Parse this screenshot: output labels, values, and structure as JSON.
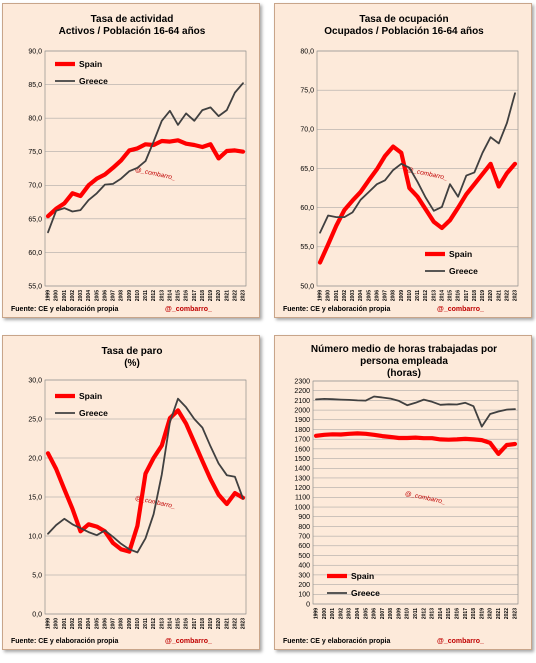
{
  "colors": {
    "spain": "#ff0000",
    "greece": "#404040",
    "grid": "#9b9b9b",
    "panel": "#fdeada"
  },
  "footer": {
    "source": "Fuente:  CE y elaboración propia",
    "handle": "@_combarro_"
  },
  "watermark": "@_combarro_",
  "chart_data": [
    {
      "type": "line",
      "title": "Tasa de actividad",
      "subtitle": "Activos / Población 16-64 años",
      "x": [
        "1999",
        "2000",
        "2001",
        "2002",
        "2003",
        "2004",
        "2005",
        "2006",
        "2007",
        "2008",
        "2009",
        "2010",
        "2011",
        "2012",
        "2013",
        "2014",
        "2015",
        "2016",
        "2017",
        "2018",
        "2019",
        "2020",
        "2021",
        "2022",
        "2023"
      ],
      "ylim": [
        55,
        90
      ],
      "yticks": [
        55,
        60,
        65,
        70,
        75,
        80,
        85,
        90
      ],
      "ydecimals": 1,
      "legend": "top-left",
      "series": [
        {
          "name": "Spain",
          "values": [
            65.4,
            66.5,
            67.3,
            68.8,
            68.4,
            70.0,
            71.0,
            71.6,
            72.6,
            73.7,
            75.2,
            75.5,
            76.1,
            76.0,
            76.6,
            76.5,
            76.7,
            76.2,
            76.0,
            75.7,
            76.1,
            74.0,
            75.1,
            75.2,
            75.0
          ]
        },
        {
          "name": "Greece",
          "values": [
            63.0,
            66.2,
            66.6,
            66.1,
            66.3,
            67.8,
            68.8,
            70.1,
            70.2,
            71.0,
            72.1,
            72.6,
            73.6,
            76.5,
            79.6,
            81.1,
            79.0,
            80.7,
            79.6,
            81.2,
            81.6,
            80.3,
            81.2,
            83.8,
            85.2
          ]
        }
      ]
    },
    {
      "type": "line",
      "title": "Tasa de ocupación",
      "subtitle": "Ocupados / Población 16-64 años",
      "x": [
        "1999",
        "2000",
        "2001",
        "2002",
        "2003",
        "2004",
        "2005",
        "2006",
        "2007",
        "2008",
        "2009",
        "2010",
        "2011",
        "2012",
        "2013",
        "2014",
        "2015",
        "2016",
        "2017",
        "2018",
        "2019",
        "2020",
        "2021",
        "2022",
        "2023"
      ],
      "ylim": [
        50,
        80
      ],
      "yticks": [
        50,
        55,
        60,
        65,
        70,
        75,
        80
      ],
      "ydecimals": 1,
      "legend": "bottom-right",
      "series": [
        {
          "name": "Spain",
          "values": [
            53.0,
            55.3,
            57.7,
            59.7,
            60.9,
            62.0,
            63.5,
            64.9,
            66.6,
            67.8,
            67.0,
            62.5,
            61.4,
            59.8,
            58.2,
            57.4,
            58.4,
            60.0,
            61.7,
            63.0,
            64.3,
            65.6,
            62.7,
            64.4,
            65.6
          ]
        },
        {
          "name": "Greece",
          "values": [
            56.8,
            59.0,
            58.8,
            58.8,
            59.4,
            61.0,
            62.0,
            63.0,
            63.5,
            64.8,
            65.6,
            65.1,
            63.3,
            61.3,
            59.6,
            60.1,
            63.0,
            61.4,
            64.1,
            64.5,
            67.0,
            69.0,
            68.2,
            70.8,
            74.6
          ]
        }
      ]
    },
    {
      "type": "line",
      "title": "Tasa de paro",
      "subtitle": "(%)",
      "x": [
        "1999",
        "2000",
        "2001",
        "2002",
        "2003",
        "2004",
        "2005",
        "2006",
        "2007",
        "2008",
        "2009",
        "2010",
        "2011",
        "2012",
        "2013",
        "2014",
        "2015",
        "2016",
        "2017",
        "2018",
        "2019",
        "2020",
        "2021",
        "2022",
        "2023"
      ],
      "ylim": [
        0,
        30
      ],
      "yticks": [
        0,
        5,
        10,
        15,
        20,
        25,
        30
      ],
      "ydecimals": 1,
      "legend": "top-left",
      "series": [
        {
          "name": "Spain",
          "values": [
            20.6,
            18.6,
            16.0,
            13.5,
            10.6,
            11.5,
            11.2,
            10.6,
            9.1,
            8.3,
            8.0,
            11.3,
            18.0,
            20.0,
            21.6,
            25.1,
            26.1,
            24.4,
            22.0,
            19.6,
            17.3,
            15.3,
            14.1,
            15.5,
            14.9
          ]
        },
        {
          "name": "Greece",
          "values": [
            10.3,
            11.4,
            12.2,
            11.5,
            11.0,
            10.5,
            10.1,
            10.7,
            9.9,
            9.0,
            8.3,
            7.9,
            9.7,
            12.8,
            17.9,
            24.6,
            27.6,
            26.5,
            25.0,
            23.9,
            21.5,
            19.3,
            17.8,
            17.6,
            14.8
          ]
        }
      ]
    },
    {
      "type": "line",
      "title": "Número medio de horas trabajadas  por persona empleada",
      "subtitle": "(horas)",
      "x": [
        "1999",
        "2000",
        "2001",
        "2002",
        "2003",
        "2004",
        "2005",
        "2006",
        "2007",
        "2008",
        "2009",
        "2010",
        "2011",
        "2012",
        "2013",
        "2014",
        "2015",
        "2016",
        "2017",
        "2018",
        "2019",
        "2020",
        "2021",
        "2022",
        "2023"
      ],
      "ylim": [
        0,
        2300
      ],
      "yticks": [
        0,
        100,
        200,
        300,
        400,
        500,
        600,
        700,
        800,
        900,
        1000,
        1100,
        1200,
        1300,
        1400,
        1500,
        1600,
        1700,
        1800,
        1900,
        2000,
        2100,
        2200,
        2300
      ],
      "ydecimals": 0,
      "legend": "bottom-left",
      "series": [
        {
          "name": "Spain",
          "values": [
            1735,
            1745,
            1750,
            1748,
            1755,
            1760,
            1755,
            1745,
            1732,
            1722,
            1712,
            1712,
            1716,
            1710,
            1710,
            1698,
            1695,
            1698,
            1703,
            1698,
            1690,
            1662,
            1548,
            1640,
            1650
          ]
        },
        {
          "name": "Greece",
          "values": [
            2110,
            2115,
            2112,
            2108,
            2105,
            2100,
            2098,
            2140,
            2130,
            2118,
            2095,
            2050,
            2075,
            2108,
            2085,
            2055,
            2060,
            2058,
            2075,
            2040,
            1830,
            1960,
            1985,
            2005,
            2010
          ]
        }
      ]
    }
  ]
}
